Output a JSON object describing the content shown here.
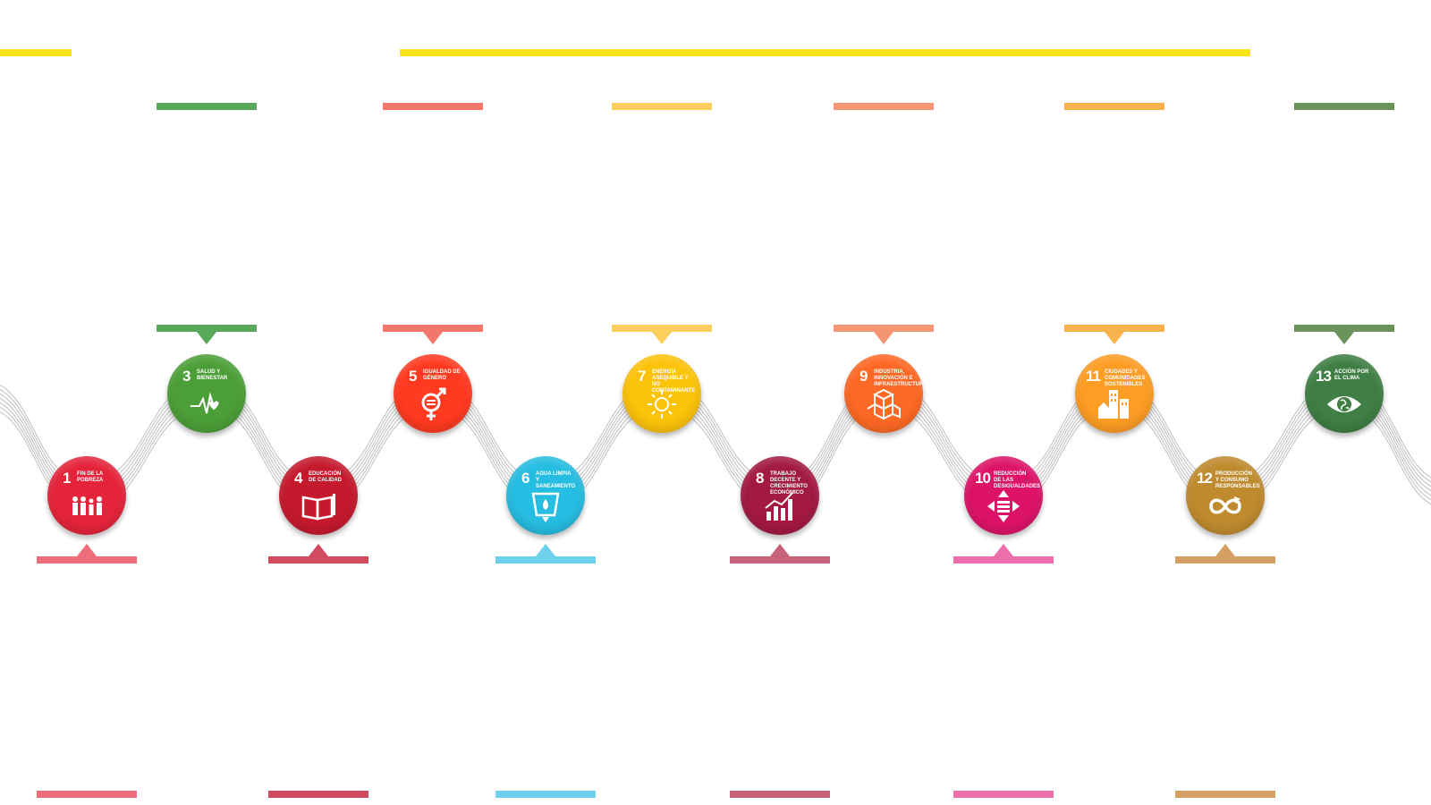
{
  "colors": {
    "top_yellow": "#f9e21a",
    "wave_line": "#c8c8c8"
  },
  "goals": [
    {
      "id": "goal-1",
      "number": "1",
      "label": "Fin de la pobreza",
      "color": "#e5243b",
      "bar_color": "#ee6d7a",
      "position": "bottom",
      "icon": "people-icon"
    },
    {
      "id": "goal-3",
      "number": "3",
      "label": "Salud y bienestar",
      "color": "#4c9f38",
      "bar_color": "#5aa85a",
      "position": "top",
      "icon": "heartbeat-icon"
    },
    {
      "id": "goal-4",
      "number": "4",
      "label": "Educación de calidad",
      "color": "#c5192d",
      "bar_color": "#d34b5e",
      "position": "bottom",
      "icon": "book-icon"
    },
    {
      "id": "goal-5",
      "number": "5",
      "label": "Igualdad de género",
      "color": "#ff3a21",
      "bar_color": "#f2766b",
      "position": "top",
      "icon": "gender-icon"
    },
    {
      "id": "goal-6",
      "number": "6",
      "label": "Agua limpia y saneamiento",
      "color": "#26bde2",
      "bar_color": "#6fd0ec",
      "position": "bottom",
      "icon": "water-icon"
    },
    {
      "id": "goal-7",
      "number": "7",
      "label": "Energía asequible y no contaminante",
      "color": "#fcc30b",
      "bar_color": "#fccf5c",
      "position": "top",
      "icon": "sun-icon"
    },
    {
      "id": "goal-8",
      "number": "8",
      "label": "Trabajo decente y crecimiento económico",
      "color": "#a21942",
      "bar_color": "#c7627a",
      "position": "bottom",
      "icon": "growth-chart-icon"
    },
    {
      "id": "goal-9",
      "number": "9",
      "label": "Industria, innovación e infraestructura",
      "color": "#fd6925",
      "bar_color": "#f69574",
      "position": "top",
      "icon": "cubes-icon"
    },
    {
      "id": "goal-10",
      "number": "10",
      "label": "Reducción de las desigualdades",
      "color": "#dd1367",
      "bar_color": "#ec6eaa",
      "position": "bottom",
      "icon": "equality-arrows-icon"
    },
    {
      "id": "goal-11",
      "number": "11",
      "label": "Ciudades y comunidades sostenibles",
      "color": "#fd9d24",
      "bar_color": "#f8b34a",
      "position": "top",
      "icon": "city-icon"
    },
    {
      "id": "goal-12",
      "number": "12",
      "label": "Producción y consumo responsables",
      "color": "#bf8b2e",
      "bar_color": "#d4a063",
      "position": "bottom",
      "icon": "infinity-icon"
    },
    {
      "id": "goal-13",
      "number": "13",
      "label": "Acción por el clima",
      "color": "#3f7e44",
      "bar_color": "#6b935a",
      "position": "top",
      "icon": "eye-globe-icon"
    }
  ]
}
